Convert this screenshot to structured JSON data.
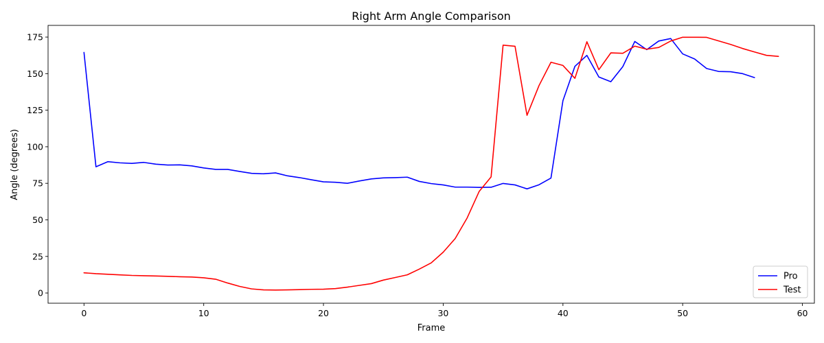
{
  "chart_data": {
    "type": "line",
    "title": "Right Arm Angle Comparison",
    "xlabel": "Frame",
    "ylabel": "Angle (degrees)",
    "xlim": [
      -3,
      61
    ],
    "ylim": [
      -7,
      183
    ],
    "xticks": [
      0,
      10,
      20,
      30,
      40,
      50,
      60
    ],
    "yticks": [
      0,
      25,
      50,
      75,
      100,
      125,
      150,
      175
    ],
    "grid": false,
    "legend_position": "lower-right",
    "series": [
      {
        "name": "Pro",
        "color": "#0000ff",
        "x": [
          0,
          1,
          2,
          3,
          4,
          5,
          6,
          7,
          8,
          9,
          10,
          11,
          12,
          13,
          14,
          15,
          16,
          17,
          18,
          19,
          20,
          21,
          22,
          23,
          24,
          25,
          26,
          27,
          28,
          29,
          30,
          31,
          32,
          33,
          34,
          35,
          36,
          37,
          38,
          39,
          40,
          41,
          42,
          43,
          44,
          45,
          46,
          47,
          48,
          49,
          50,
          51,
          52,
          53,
          54,
          55,
          56
        ],
        "values": [
          164.5,
          86.3,
          89.8,
          89.0,
          88.6,
          89.3,
          88.1,
          87.5,
          87.6,
          86.9,
          85.5,
          84.5,
          84.5,
          83.1,
          81.8,
          81.5,
          82.1,
          80.1,
          78.9,
          77.4,
          76.0,
          75.7,
          75.0,
          76.6,
          78.0,
          78.7,
          78.9,
          79.2,
          76.3,
          74.8,
          73.9,
          72.4,
          72.4,
          72.2,
          72.3,
          74.9,
          73.9,
          71.2,
          74.0,
          78.6,
          131.5,
          155.0,
          162.5,
          147.7,
          144.5,
          154.8,
          172.0,
          166.4,
          172.3,
          174.0,
          163.5,
          160.0,
          153.5,
          151.5,
          151.3,
          150.0,
          147.3
        ]
      },
      {
        "name": "Test",
        "color": "#ff0000",
        "x": [
          0,
          1,
          2,
          3,
          4,
          5,
          6,
          7,
          8,
          9,
          10,
          11,
          12,
          13,
          14,
          15,
          16,
          17,
          18,
          19,
          20,
          21,
          22,
          23,
          24,
          25,
          26,
          27,
          28,
          29,
          30,
          31,
          32,
          33,
          34,
          35,
          36,
          37,
          38,
          39,
          40,
          41,
          42,
          43,
          44,
          45,
          46,
          47,
          48,
          49,
          50,
          51,
          52,
          53,
          54,
          55,
          56,
          57,
          58
        ],
        "values": [
          13.8,
          13.2,
          12.8,
          12.4,
          12.0,
          11.8,
          11.6,
          11.4,
          11.1,
          10.9,
          10.4,
          9.4,
          6.8,
          4.5,
          2.8,
          2.1,
          2.0,
          2.1,
          2.3,
          2.5,
          2.6,
          3.0,
          4.0,
          5.2,
          6.4,
          8.8,
          10.6,
          12.4,
          16.3,
          20.6,
          27.9,
          37.2,
          51.3,
          69.4,
          79.4,
          169.5,
          168.7,
          121.5,
          141.8,
          157.8,
          155.6,
          146.8,
          171.8,
          152.7,
          164.2,
          163.9,
          168.8,
          166.7,
          167.9,
          172.3,
          174.9,
          174.9,
          174.8,
          172.4,
          170.0,
          167.2,
          164.8,
          162.5,
          161.8
        ]
      }
    ]
  }
}
